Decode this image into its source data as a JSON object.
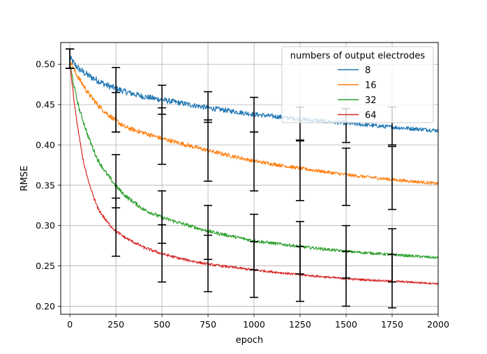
{
  "chart_data": {
    "type": "line",
    "title": "",
    "xlabel": "epoch",
    "ylabel": "RMSE",
    "xlim": [
      -50,
      2000
    ],
    "ylim": [
      0.19,
      0.527
    ],
    "xticks": [
      0,
      250,
      500,
      750,
      1000,
      1250,
      1500,
      1750,
      2000
    ],
    "yticks": [
      0.2,
      0.25,
      0.3,
      0.35,
      0.4,
      0.45,
      0.5
    ],
    "xtick_labels": [
      "0",
      "250",
      "500",
      "750",
      "1000",
      "1250",
      "1500",
      "1750",
      "2000"
    ],
    "ytick_labels": [
      "0.20",
      "0.25",
      "0.30",
      "0.35",
      "0.40",
      "0.45",
      "0.50"
    ],
    "grid": true,
    "legend": {
      "title": "numbers of output electrodes",
      "position": "top-right"
    },
    "series": [
      {
        "name": "8",
        "color": "#1f77b4",
        "noise": 0.0045,
        "x": [
          0,
          25,
          50,
          100,
          150,
          200,
          250,
          300,
          400,
          500,
          600,
          750,
          1000,
          1250,
          1500,
          1750,
          2000
        ],
        "y": [
          0.508,
          0.5,
          0.494,
          0.486,
          0.48,
          0.474,
          0.47,
          0.466,
          0.46,
          0.456,
          0.452,
          0.446,
          0.438,
          0.432,
          0.427,
          0.422,
          0.418
        ],
        "error_bars": [
          {
            "x": 0,
            "low": 0.495,
            "high": 0.519
          },
          {
            "x": 250,
            "low": 0.416,
            "high": 0.496
          },
          {
            "x": 500,
            "low": 0.438,
            "high": 0.474
          },
          {
            "x": 750,
            "low": 0.428,
            "high": 0.466
          },
          {
            "x": 1000,
            "low": 0.416,
            "high": 0.459
          },
          {
            "x": 1250,
            "low": 0.405,
            "high": 0.447
          },
          {
            "x": 1500,
            "low": 0.403,
            "high": 0.445
          },
          {
            "x": 1750,
            "low": 0.4,
            "high": 0.447
          }
        ]
      },
      {
        "name": "16",
        "color": "#ff7f0e",
        "noise": 0.0035,
        "x": [
          0,
          25,
          50,
          100,
          150,
          200,
          250,
          300,
          400,
          500,
          600,
          750,
          1000,
          1250,
          1500,
          1750,
          2000
        ],
        "y": [
          0.505,
          0.492,
          0.482,
          0.464,
          0.45,
          0.439,
          0.43,
          0.422,
          0.415,
          0.408,
          0.402,
          0.393,
          0.38,
          0.371,
          0.363,
          0.357,
          0.352
        ],
        "error_bars": [
          {
            "x": 0,
            "low": 0.495,
            "high": 0.519
          },
          {
            "x": 250,
            "low": 0.416,
            "high": 0.465
          },
          {
            "x": 500,
            "low": 0.376,
            "high": 0.446
          },
          {
            "x": 750,
            "low": 0.355,
            "high": 0.431
          },
          {
            "x": 1000,
            "low": 0.343,
            "high": 0.416
          },
          {
            "x": 1250,
            "low": 0.331,
            "high": 0.406
          },
          {
            "x": 1500,
            "low": 0.325,
            "high": 0.396
          },
          {
            "x": 1750,
            "low": 0.32,
            "high": 0.398
          }
        ]
      },
      {
        "name": "32",
        "color": "#2ca02c",
        "noise": 0.003,
        "x": [
          0,
          25,
          50,
          100,
          150,
          200,
          250,
          300,
          400,
          500,
          600,
          750,
          1000,
          1250,
          1500,
          1750,
          2000
        ],
        "y": [
          0.5,
          0.47,
          0.445,
          0.41,
          0.382,
          0.364,
          0.349,
          0.337,
          0.32,
          0.31,
          0.303,
          0.293,
          0.281,
          0.274,
          0.268,
          0.264,
          0.26
        ],
        "error_bars": [
          {
            "x": 0,
            "low": 0.495,
            "high": 0.519
          },
          {
            "x": 250,
            "low": 0.322,
            "high": 0.388
          },
          {
            "x": 500,
            "low": 0.278,
            "high": 0.343
          },
          {
            "x": 750,
            "low": 0.258,
            "high": 0.325
          },
          {
            "x": 1000,
            "low": 0.245,
            "high": 0.314
          },
          {
            "x": 1250,
            "low": 0.24,
            "high": 0.305
          },
          {
            "x": 1500,
            "low": 0.235,
            "high": 0.3
          },
          {
            "x": 1750,
            "low": 0.23,
            "high": 0.296
          }
        ]
      },
      {
        "name": "64",
        "color": "#d62728",
        "noise": 0.0022,
        "x": [
          0,
          25,
          50,
          75,
          100,
          150,
          200,
          250,
          300,
          400,
          500,
          600,
          750,
          1000,
          1250,
          1500,
          1750,
          2000
        ],
        "y": [
          0.5,
          0.45,
          0.41,
          0.378,
          0.354,
          0.322,
          0.305,
          0.293,
          0.285,
          0.273,
          0.265,
          0.259,
          0.252,
          0.245,
          0.239,
          0.234,
          0.231,
          0.228
        ],
        "error_bars": [
          {
            "x": 0,
            "low": 0.495,
            "high": 0.519
          },
          {
            "x": 250,
            "low": 0.262,
            "high": 0.334
          },
          {
            "x": 500,
            "low": 0.23,
            "high": 0.301
          },
          {
            "x": 750,
            "low": 0.218,
            "high": 0.288
          },
          {
            "x": 1000,
            "low": 0.211,
            "high": 0.28
          },
          {
            "x": 1250,
            "low": 0.206,
            "high": 0.274
          },
          {
            "x": 1500,
            "low": 0.2,
            "high": 0.268
          },
          {
            "x": 1750,
            "low": 0.198,
            "high": 0.264
          }
        ]
      }
    ]
  }
}
